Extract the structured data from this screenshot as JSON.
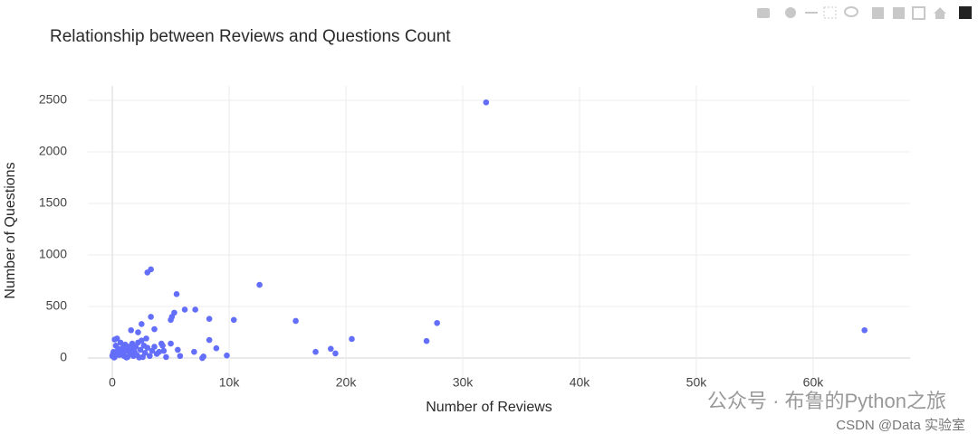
{
  "chart_data": {
    "type": "scatter",
    "title": "Relationship between Reviews and Questions Count",
    "xlabel": "Number of Reviews",
    "ylabel": "Number of Questions",
    "color": "#636efa",
    "xlim": [
      -2100,
      68300
    ],
    "ylim": [
      -254,
      2640
    ],
    "xticks": [
      0,
      {
        "value": 10000,
        "label": "10k"
      },
      {
        "value": 20000,
        "label": "20k"
      },
      {
        "value": 30000,
        "label": "30k"
      },
      {
        "value": 40000,
        "label": "40k"
      },
      {
        "value": 50000,
        "label": "50k"
      },
      {
        "value": 60000,
        "label": "60k"
      }
    ],
    "yticks": [
      0,
      500,
      1000,
      1500,
      2000,
      2500
    ],
    "grid": true,
    "x": [
      32000,
      64400,
      27800,
      26900,
      20500,
      18700,
      19100,
      17400,
      15700,
      12600,
      10400,
      9800,
      8900,
      8300,
      8300,
      7800,
      7700,
      7100,
      7000,
      6200,
      5500,
      5800,
      5600,
      5100,
      5300,
      5000,
      3300,
      3000,
      3300,
      3600,
      5000,
      4400,
      4200,
      2500,
      2200,
      1600,
      400,
      200,
      0,
      100,
      200,
      300,
      500,
      600,
      700,
      800,
      900,
      1000,
      1100,
      1200,
      1300,
      1400,
      1500,
      1600,
      1700,
      1800,
      1900,
      2000,
      2100,
      2200,
      2400,
      2600,
      2700,
      2800,
      3000,
      3200,
      3400,
      3600,
      3800,
      4000,
      4300,
      4600,
      2900,
      2500,
      50,
      150,
      400,
      1200,
      2300
    ],
    "values": [
      2480,
      270,
      340,
      165,
      185,
      90,
      45,
      60,
      360,
      710,
      370,
      25,
      95,
      380,
      175,
      15,
      0,
      470,
      60,
      470,
      620,
      20,
      80,
      400,
      440,
      370,
      860,
      830,
      400,
      280,
      140,
      70,
      140,
      330,
      250,
      270,
      190,
      180,
      20,
      60,
      10,
      120,
      90,
      30,
      150,
      50,
      100,
      20,
      130,
      70,
      10,
      110,
      40,
      90,
      140,
      20,
      60,
      110,
      30,
      150,
      80,
      10,
      120,
      50,
      100,
      20,
      70,
      110,
      40,
      60,
      120,
      10,
      190,
      170,
      40,
      5,
      50,
      5,
      5
    ]
  },
  "watermark": [
    "公众号 · 布鲁的Python之旅",
    "CSDN @Data 实验室"
  ]
}
